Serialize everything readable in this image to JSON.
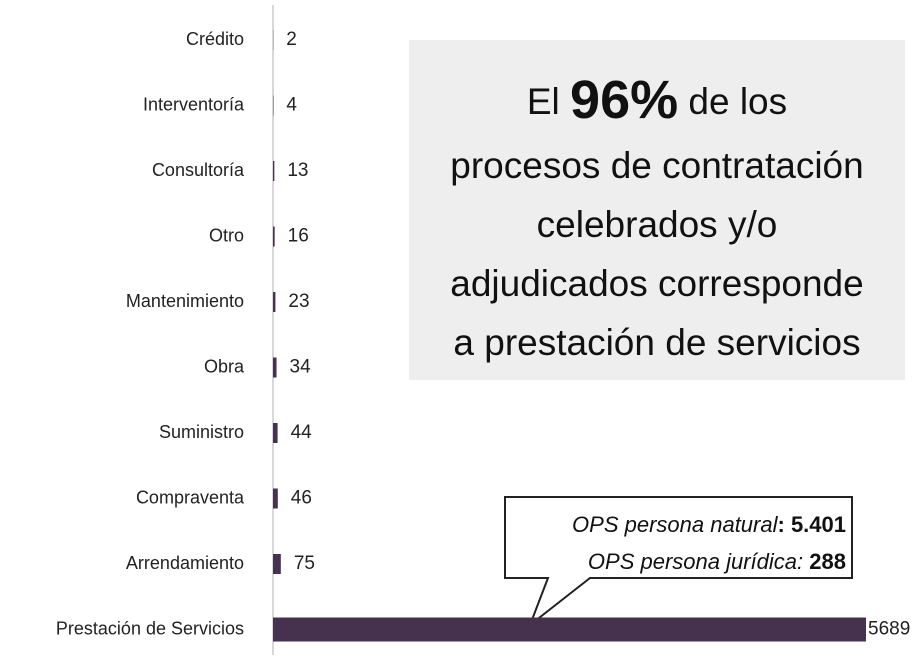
{
  "chart_data": {
    "type": "barh",
    "categories": [
      "Crédito",
      "Interventoría",
      "Consultoría",
      "Otro",
      "Mantenimiento",
      "Obra",
      "Suministro",
      "Compraventa",
      "Arrendamiento",
      "Prestación de Servicios"
    ],
    "values": [
      2,
      4,
      13,
      16,
      23,
      34,
      44,
      46,
      75,
      5689
    ],
    "color": "#46314f",
    "headline": {
      "start": "El",
      "highlight": "96%",
      "end": "de los",
      "lines": [
        "procesos de contratación",
        "celebrados y/o",
        "adjudicados corresponde",
        "a prestación de servicios"
      ]
    },
    "callout": {
      "natural_label": "OPS persona natural",
      "natural_value": ": 5.401",
      "juridica_label": "OPS persona jurídica:",
      "juridica_value": "288"
    }
  }
}
